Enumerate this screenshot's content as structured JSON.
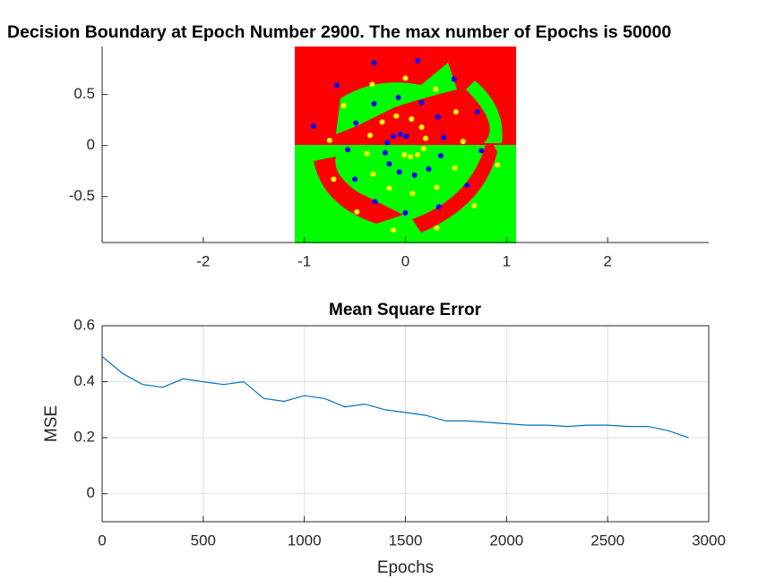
{
  "chart_data": [
    {
      "type": "scatter",
      "title": "Decision Boundary at Epoch Number 2900. The max number of Epochs is 50000",
      "xlim": [
        -3,
        3
      ],
      "ylim": [
        -0.95,
        0.97
      ],
      "xticks": [
        -2,
        -1,
        0,
        1,
        2
      ],
      "yticks": [
        -0.5,
        0,
        0.5
      ],
      "grid": false,
      "series": [
        {
          "color": "#0000ff",
          "x": [
            0.01,
            -0.05,
            -0.12,
            -0.18,
            -0.2,
            -0.16,
            -0.06,
            0.09,
            0.23,
            0.35,
            0.38,
            0.32,
            0.16,
            -0.07,
            -0.31,
            -0.49,
            -0.57,
            -0.5,
            -0.3,
            0.0,
            0.33,
            0.61,
            0.75,
            0.71,
            0.48,
            0.12,
            -0.31,
            -0.68,
            -0.91
          ],
          "y": [
            0.09,
            0.11,
            0.09,
            0.03,
            -0.07,
            -0.18,
            -0.26,
            -0.29,
            -0.23,
            -0.1,
            0.08,
            0.28,
            0.42,
            0.47,
            0.41,
            0.22,
            -0.04,
            -0.33,
            -0.55,
            -0.66,
            -0.6,
            -0.39,
            -0.05,
            0.33,
            0.65,
            0.83,
            0.81,
            0.59,
            0.19
          ]
        },
        {
          "color": "#ffff00",
          "x": [
            -0.01,
            0.05,
            0.12,
            0.18,
            0.2,
            0.16,
            0.06,
            -0.09,
            -0.23,
            -0.35,
            -0.38,
            -0.32,
            -0.16,
            0.07,
            0.31,
            0.49,
            0.57,
            0.5,
            0.3,
            0.0,
            -0.33,
            -0.61,
            -0.75,
            -0.71,
            -0.48,
            -0.12,
            0.31,
            0.68,
            0.91
          ],
          "y": [
            -0.09,
            -0.11,
            -0.09,
            -0.03,
            0.07,
            0.18,
            0.26,
            0.29,
            0.23,
            0.1,
            -0.08,
            -0.28,
            -0.42,
            -0.47,
            -0.41,
            -0.22,
            0.04,
            0.33,
            0.55,
            0.66,
            0.6,
            0.39,
            0.05,
            -0.33,
            -0.65,
            -0.83,
            -0.81,
            -0.59,
            -0.19
          ]
        }
      ]
    },
    {
      "type": "line",
      "title": "Mean Square Error",
      "xlabel": "Epochs",
      "ylabel": "MSE",
      "xlim": [
        0,
        3000
      ],
      "ylim": [
        -0.1,
        0.6
      ],
      "xticks": [
        0,
        500,
        1000,
        1500,
        2000,
        2500,
        3000
      ],
      "yticks": [
        0,
        0.2,
        0.4,
        0.6
      ],
      "grid": true,
      "color": "#0072bd",
      "x": [
        0,
        100,
        200,
        300,
        400,
        500,
        600,
        700,
        800,
        900,
        1000,
        1100,
        1200,
        1300,
        1400,
        1500,
        1600,
        1700,
        1800,
        1900,
        2000,
        2100,
        2200,
        2300,
        2400,
        2500,
        2600,
        2700,
        2800,
        2900
      ],
      "values": [
        0.49,
        0.43,
        0.39,
        0.38,
        0.41,
        0.4,
        0.39,
        0.4,
        0.34,
        0.33,
        0.35,
        0.34,
        0.31,
        0.32,
        0.3,
        0.29,
        0.28,
        0.26,
        0.26,
        0.255,
        0.25,
        0.245,
        0.245,
        0.24,
        0.245,
        0.245,
        0.24,
        0.24,
        0.225,
        0.2
      ]
    }
  ]
}
